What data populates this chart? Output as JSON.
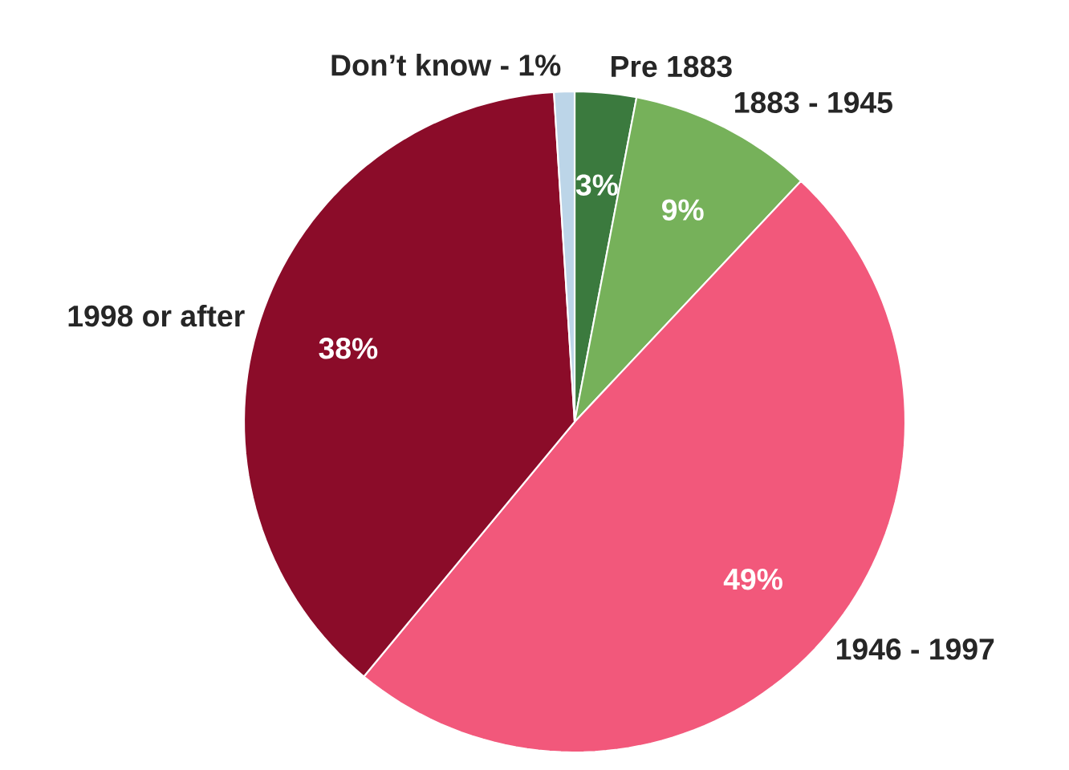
{
  "chart_data": {
    "type": "pie",
    "categories": [
      "Pre 1883",
      "1883 - 1945",
      "1946 - 1997",
      "1998 or after",
      "Don’t know - 1%"
    ],
    "values": [
      3,
      9,
      49,
      38,
      1
    ],
    "colors": [
      "#3b7a3e",
      "#76b15a",
      "#f2587b",
      "#8b0c29",
      "#bcd5e8"
    ],
    "value_labels": [
      "3%",
      "9%",
      "49%",
      "38%",
      null
    ]
  }
}
